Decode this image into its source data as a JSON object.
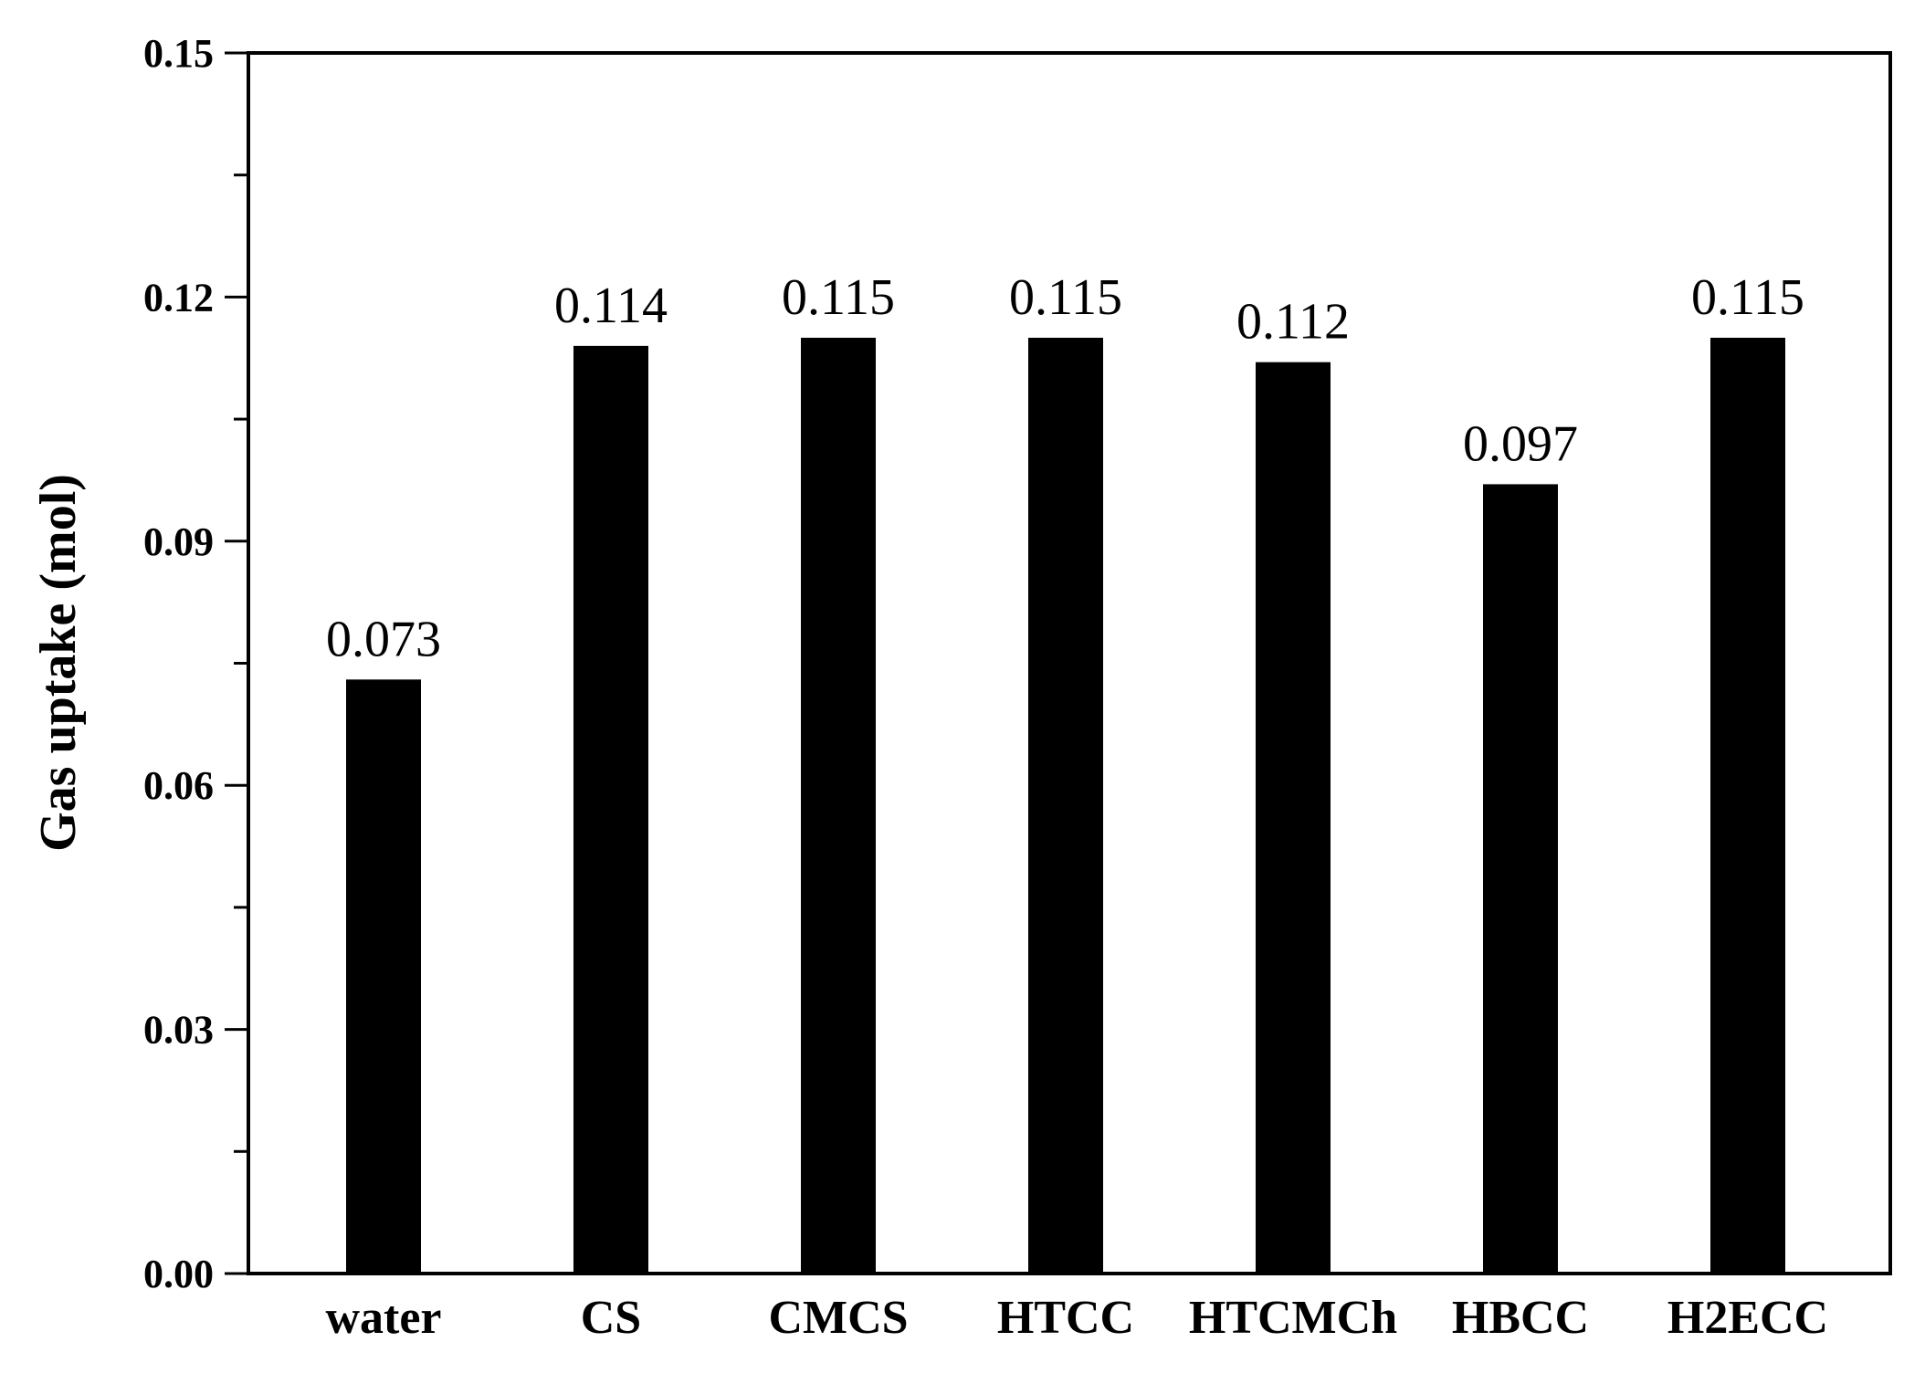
{
  "chart_data": {
    "type": "bar",
    "categories": [
      "water",
      "CS",
      "CMCS",
      "HTCC",
      "HTCMCh",
      "HBCC",
      "H2ECC"
    ],
    "values": [
      0.073,
      0.114,
      0.115,
      0.115,
      0.112,
      0.097,
      0.115
    ],
    "data_labels": [
      "0.073",
      "0.114",
      "0.115",
      "0.115",
      "0.112",
      "0.097",
      "0.115"
    ],
    "ylabel": "Gas uptake (mol)",
    "xlabel": "",
    "ylim": [
      0,
      0.15
    ],
    "yticks": [
      0.0,
      0.03,
      0.06,
      0.09,
      0.12,
      0.15
    ],
    "ytick_labels": [
      "0.00",
      "0.03",
      "0.06",
      "0.09",
      "0.12",
      "0.15"
    ],
    "bar_color": "#000000",
    "grid": false,
    "legend": "none"
  }
}
